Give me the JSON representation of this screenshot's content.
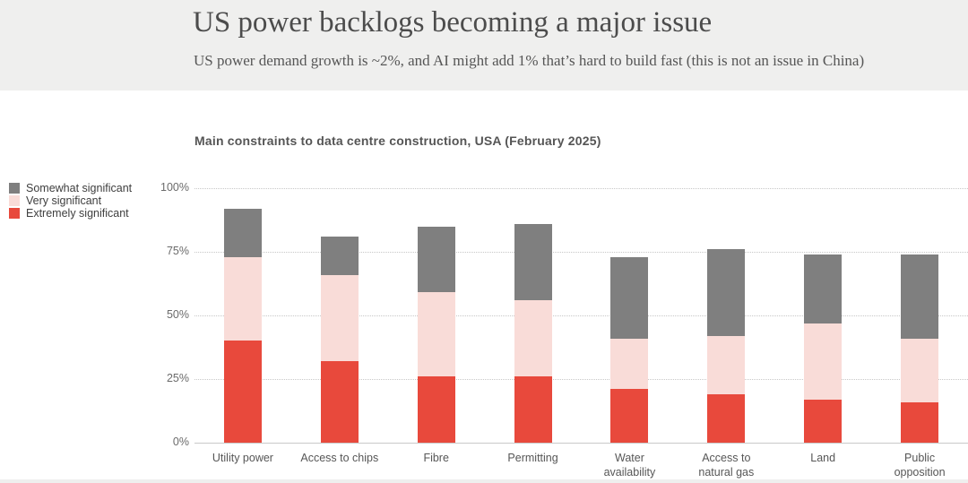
{
  "header": {
    "title": "US power backlogs becoming a major issue",
    "subtitle": "US power demand growth is ~2%, and AI might add 1% that’s hard to build fast (this is not an issue in China)"
  },
  "chart_data": {
    "type": "bar",
    "stacked": true,
    "title": "Main constraints to data centre construction, USA (February 2025)",
    "categories": [
      "Utility power",
      "Access to chips",
      "Fibre",
      "Permitting",
      "Water\navailability",
      "Access to\nnatural gas",
      "Land",
      "Public\nopposition"
    ],
    "series": [
      {
        "name": "Extremely significant",
        "color": "#e8493c",
        "values": [
          40,
          32,
          26,
          26,
          21,
          19,
          17,
          16
        ]
      },
      {
        "name": "Very significant",
        "color": "#f9dcd8",
        "values": [
          33,
          34,
          33,
          30,
          20,
          23,
          30,
          25
        ]
      },
      {
        "name": "Somewhat significant",
        "color": "#7f7f7f",
        "values": [
          19,
          15,
          26,
          30,
          32,
          34,
          27,
          33
        ]
      }
    ],
    "stack_totals": [
      92,
      81,
      85,
      86,
      73,
      76,
      74,
      74
    ],
    "xlabel": "",
    "ylabel": "",
    "ylim": [
      0,
      100
    ],
    "yticks": [
      "0%",
      "25%",
      "50%",
      "75%",
      "100%"
    ],
    "grid": "horizontal-dotted",
    "legend_position": "left",
    "colors": {
      "somewhat_significant": "#7f7f7f",
      "very_significant": "#f9dcd8",
      "extremely_significant": "#e8493c",
      "header_background": "#efefee",
      "gridline": "#c7c7c7"
    }
  }
}
